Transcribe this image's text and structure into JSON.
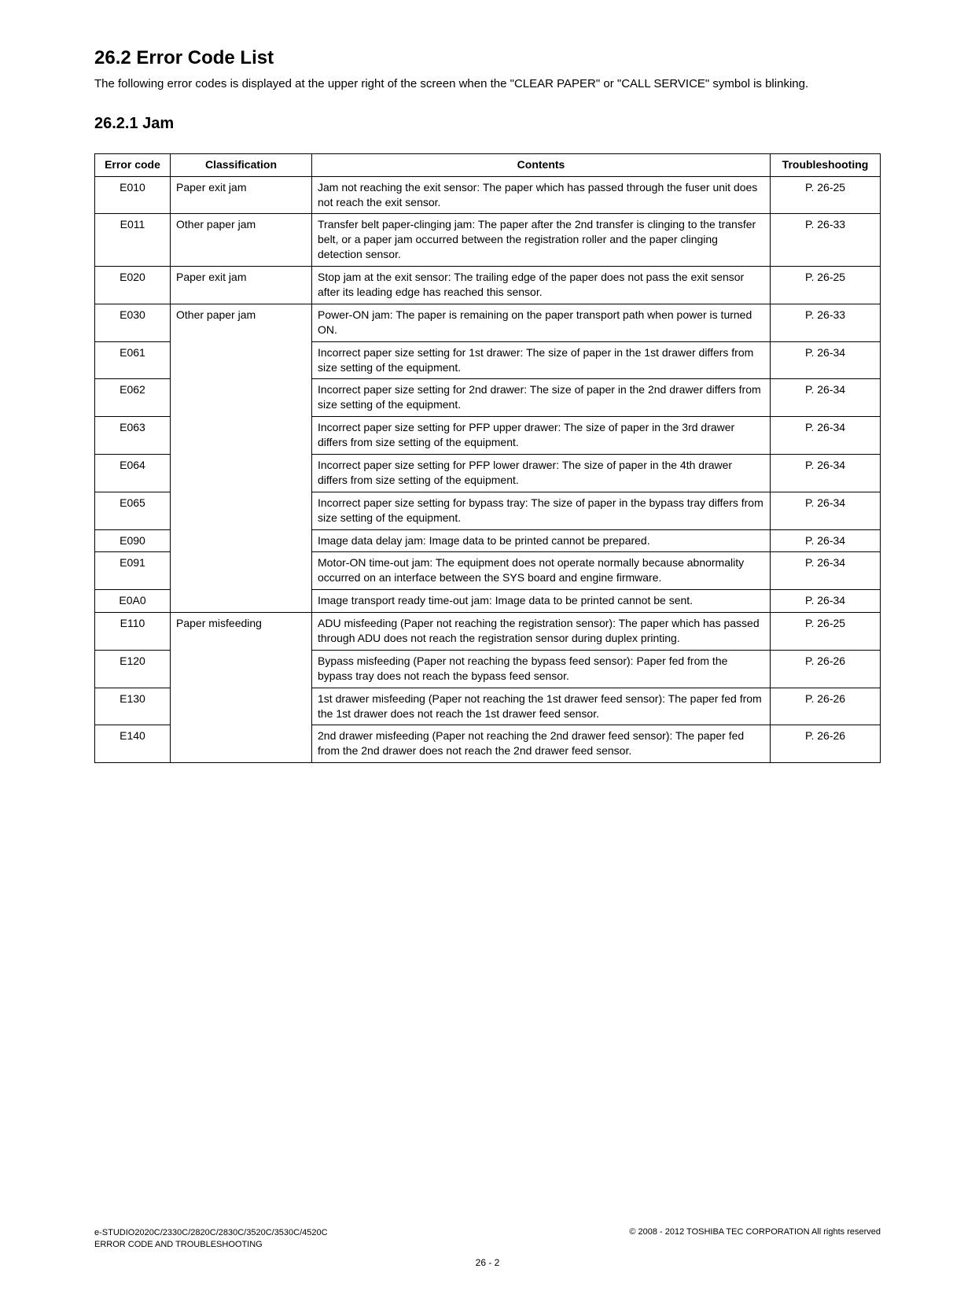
{
  "section": {
    "title": "26.2   Error Code List",
    "intro": "The following error codes is displayed at the upper right of the screen when the \"CLEAR PAPER\" or \"CALL SERVICE\" symbol is blinking."
  },
  "subsection": {
    "title": "26.2.1    Jam"
  },
  "table": {
    "headers": {
      "code": "Error code",
      "classification": "Classification",
      "contents": "Contents",
      "troubleshooting": "Troubleshooting"
    },
    "rows": [
      {
        "code": "E010",
        "classification": "Paper exit jam",
        "contents": "Jam not reaching the exit sensor: The paper which has passed through the fuser unit does not reach the exit sensor.",
        "ts": "P. 26-25",
        "class_rowspan": 1
      },
      {
        "code": "E011",
        "classification": "Other paper jam",
        "contents": "Transfer belt paper-clinging jam: The paper after the 2nd transfer is clinging to the transfer belt, or a paper jam occurred between the registration roller and the paper clinging detection sensor.",
        "ts": "P. 26-33",
        "class_rowspan": 1
      },
      {
        "code": "E020",
        "classification": "Paper exit jam",
        "contents": "Stop jam at the exit sensor: The trailing edge of the paper does not pass the exit sensor after its leading edge has reached this sensor.",
        "ts": "P. 26-25",
        "class_rowspan": 1
      },
      {
        "code": "E030",
        "classification": "Other paper jam",
        "contents": "Power-ON jam: The paper is remaining on the paper transport path when power is turned ON.",
        "ts": "P. 26-33",
        "class_rowspan": 9
      },
      {
        "code": "E061",
        "classification": null,
        "contents": "Incorrect paper size setting for 1st drawer: The size of paper in the 1st drawer differs from size setting of the equipment.",
        "ts": "P. 26-34"
      },
      {
        "code": "E062",
        "classification": null,
        "contents": "Incorrect paper size setting for 2nd drawer: The size of paper in the 2nd drawer differs from size setting of the equipment.",
        "ts": "P. 26-34"
      },
      {
        "code": "E063",
        "classification": null,
        "contents": "Incorrect paper size setting for PFP upper drawer: The size of paper in the 3rd drawer differs from size setting of the equipment.",
        "ts": "P. 26-34"
      },
      {
        "code": "E064",
        "classification": null,
        "contents": "Incorrect paper size setting for PFP lower drawer: The size of paper in the 4th drawer differs from size setting of the equipment.",
        "ts": "P. 26-34"
      },
      {
        "code": "E065",
        "classification": null,
        "contents": "Incorrect paper size setting for bypass tray: The size of paper in the bypass tray differs from size setting of the equipment.",
        "ts": "P. 26-34"
      },
      {
        "code": "E090",
        "classification": null,
        "contents": "Image data delay jam: Image data to be printed cannot be prepared.",
        "ts": "P. 26-34"
      },
      {
        "code": "E091",
        "classification": null,
        "contents": "Motor-ON time-out jam: The equipment does not operate normally because abnormality occurred on an interface between the SYS board and engine firmware.",
        "ts": "P. 26-34"
      },
      {
        "code": "E0A0",
        "classification": null,
        "contents": "Image transport ready time-out jam: Image data to be printed cannot be sent.",
        "ts": "P. 26-34"
      },
      {
        "code": "E110",
        "classification": "Paper misfeeding",
        "contents": "ADU misfeeding (Paper not reaching the registration sensor): The paper which has passed through ADU does not reach the registration sensor during duplex printing.",
        "ts": "P. 26-25",
        "class_rowspan": 4
      },
      {
        "code": "E120",
        "classification": null,
        "contents": "Bypass misfeeding (Paper not reaching the bypass feed sensor): Paper fed from the bypass tray does not reach the bypass feed sensor.",
        "ts": "P. 26-26"
      },
      {
        "code": "E130",
        "classification": null,
        "contents": "1st drawer misfeeding (Paper not reaching the 1st drawer feed sensor): The paper fed from the 1st drawer does not reach the 1st drawer feed sensor.",
        "ts": "P. 26-26"
      },
      {
        "code": "E140",
        "classification": null,
        "contents": "2nd drawer misfeeding (Paper not reaching the 2nd drawer feed sensor): The paper fed from the 2nd drawer does not reach the 2nd drawer feed sensor.",
        "ts": "P. 26-26"
      }
    ]
  },
  "footer": {
    "left_line1": "e-STUDIO2020C/2330C/2820C/2830C/3520C/3530C/4520C",
    "left_line2": "ERROR CODE AND TROUBLESHOOTING",
    "right": "© 2008 - 2012 TOSHIBA TEC CORPORATION All rights reserved",
    "page_num": "26 - 2"
  },
  "styling": {
    "body_bg": "#ffffff",
    "text_color": "#000000",
    "border_color": "#000000",
    "section_title_fontsize": 24,
    "subsection_title_fontsize": 20,
    "body_fontsize": 15,
    "table_fontsize": 14,
    "footer_fontsize": 11
  }
}
